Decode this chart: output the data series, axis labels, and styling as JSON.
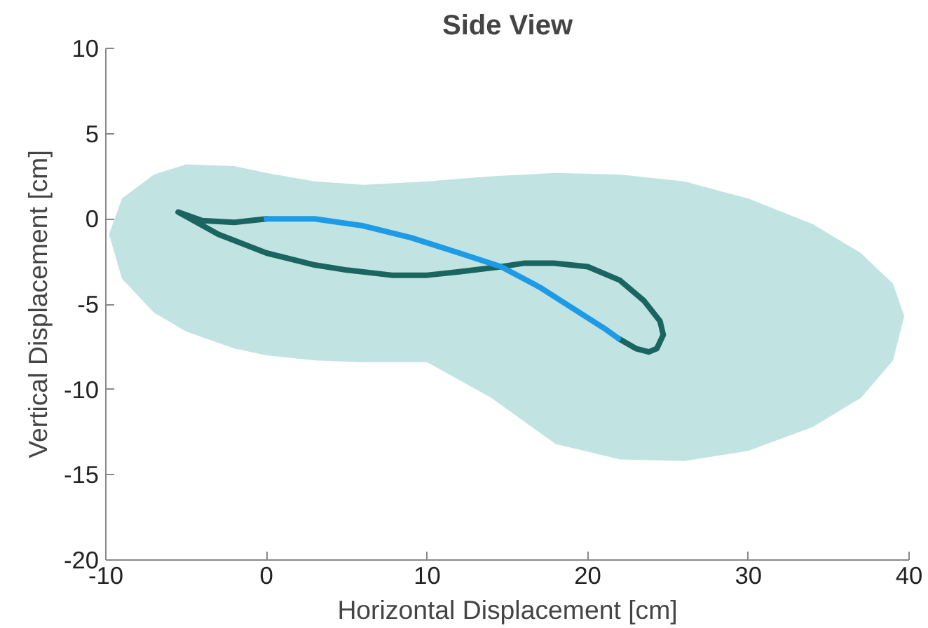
{
  "chart_data": {
    "type": "line",
    "title": "Side View",
    "xlabel": "Horizontal Displacement [cm]",
    "ylabel": "Vertical Displacement [cm]",
    "xlim": [
      -10,
      40
    ],
    "ylim": [
      -20,
      10
    ],
    "xticks": [
      -10,
      0,
      10,
      20,
      30,
      40
    ],
    "yticks": [
      -20,
      -15,
      -10,
      -5,
      0,
      5,
      10
    ],
    "grid": false,
    "series": [
      {
        "type": "area",
        "color": "#4db3ae",
        "x": [
          -9.8,
          -9,
          -7,
          -5,
          -2,
          0,
          3,
          6,
          10,
          14,
          18,
          22,
          26,
          30,
          34,
          37,
          39,
          39.7
        ],
        "values": [
          null,
          null,
          null,
          null,
          null,
          null,
          null,
          null,
          null,
          null,
          null,
          null,
          null,
          null,
          null,
          null,
          null,
          null
        ],
        "upper": [
          -0.9,
          1.2,
          2.6,
          3.2,
          3.1,
          2.7,
          2.2,
          2.0,
          2.2,
          2.5,
          2.7,
          2.6,
          2.2,
          1.2,
          -0.3,
          -2.0,
          -3.8,
          -5.7
        ],
        "lower": [
          -0.9,
          -3.5,
          -5.5,
          -6.6,
          -7.6,
          -8.0,
          -8.3,
          -8.4,
          -8.4,
          -10.5,
          -13.2,
          -14.1,
          -14.2,
          -13.6,
          -12.2,
          -10.5,
          -8.3,
          -5.7
        ]
      },
      {
        "color": "#1a6560",
        "x": [
          0,
          -2,
          -4,
          -5.5,
          -3,
          0,
          3,
          5,
          7.8,
          10,
          12,
          14.6,
          16,
          17.9,
          20,
          22,
          23.5,
          24.5,
          24.7,
          24.3,
          23.8,
          23,
          21.9
        ],
        "values": [
          0,
          -0.2,
          -0.1,
          0.4,
          -0.9,
          -2.0,
          -2.7,
          -3.0,
          -3.3,
          -3.3,
          -3.1,
          -2.8,
          -2.6,
          -2.6,
          -2.8,
          -3.6,
          -4.8,
          -6.0,
          -6.8,
          -7.6,
          -7.8,
          -7.6,
          -7.0
        ]
      },
      {
        "color": "#1e9be6",
        "x": [
          0,
          3,
          6,
          9,
          12,
          14.6,
          17,
          19,
          21,
          21.9
        ],
        "values": [
          0,
          0,
          -0.4,
          -1.1,
          -2.0,
          -2.8,
          -4.0,
          -5.2,
          -6.4,
          -7.0
        ]
      }
    ]
  }
}
